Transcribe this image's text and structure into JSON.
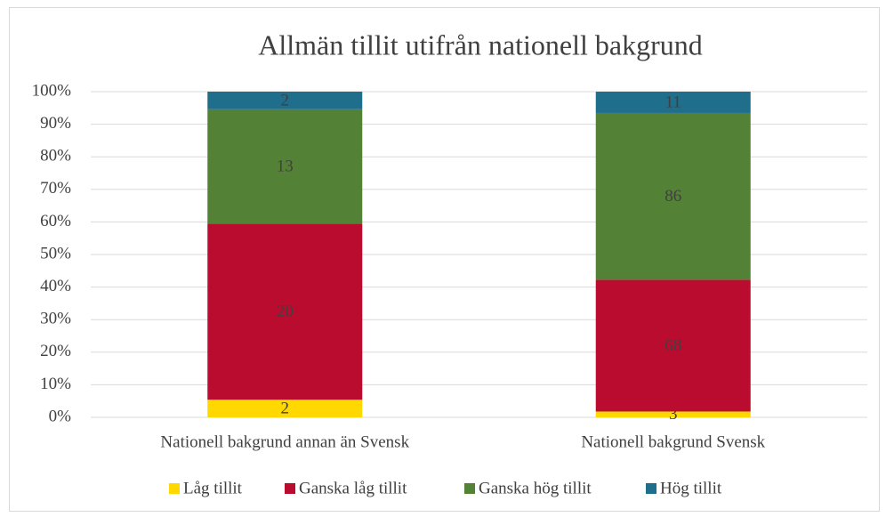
{
  "chart_data": {
    "type": "bar",
    "stacking": "percent",
    "title": "Allmän tillit utifrån nationell bakgrund",
    "categories": [
      "Nationell bakgrund annan än Svensk",
      "Nationell bakgrund Svensk"
    ],
    "series": [
      {
        "name": "Låg tillit",
        "color": "#ffd800",
        "values": [
          2,
          3
        ]
      },
      {
        "name": "Ganska låg tillit",
        "color": "#ba0c2f",
        "values": [
          20,
          68
        ]
      },
      {
        "name": "Ganska hög tillit",
        "color": "#538135",
        "values": [
          13,
          86
        ]
      },
      {
        "name": "Hög tillit",
        "color": "#1f6e8c",
        "values": [
          2,
          11
        ]
      }
    ],
    "ylim": [
      0,
      100
    ],
    "yticks": [
      {
        "value": 0,
        "label": "0%"
      },
      {
        "value": 10,
        "label": "10%"
      },
      {
        "value": 20,
        "label": "20%"
      },
      {
        "value": 30,
        "label": "30%"
      },
      {
        "value": 40,
        "label": "40%"
      },
      {
        "value": 50,
        "label": "50%"
      },
      {
        "value": 60,
        "label": "60%"
      },
      {
        "value": 70,
        "label": "70%"
      },
      {
        "value": 80,
        "label": "80%"
      },
      {
        "value": 90,
        "label": "90%"
      },
      {
        "value": 100,
        "label": "100%"
      }
    ],
    "grid": true,
    "legend": "bottom"
  }
}
